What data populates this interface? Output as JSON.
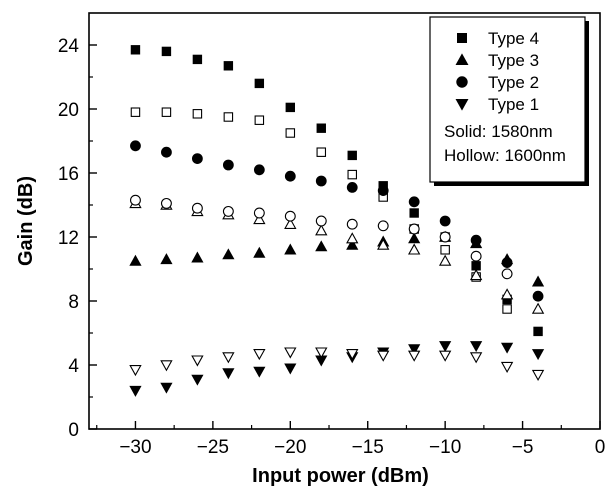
{
  "chart_data": {
    "type": "scatter",
    "title": "",
    "xlabel": "Input power (dBm)",
    "ylabel": "Gain (dB)",
    "xlim": [
      -33,
      0
    ],
    "ylim": [
      0,
      26
    ],
    "xticks": [
      -30,
      -25,
      -20,
      -15,
      -10,
      -5,
      0
    ],
    "xtick_labels": [
      "−30",
      "−25",
      "−20",
      "−15",
      "−10",
      "−5",
      "0"
    ],
    "yticks": [
      0,
      4,
      8,
      12,
      16,
      20,
      24
    ],
    "ytick_labels": [
      "0",
      "4",
      "8",
      "12",
      "16",
      "20",
      "24"
    ],
    "grid": false,
    "legend_position": "top-right",
    "legend_notes": [
      "Solid:  1580nm",
      "Hollow: 1600nm"
    ],
    "x": [
      -30,
      -28,
      -26,
      -24,
      -22,
      -20,
      -18,
      -16,
      -14,
      -12,
      -10,
      -8,
      -6,
      -4
    ],
    "series": [
      {
        "legend": "Type  4",
        "marker": "square",
        "fill": "solid",
        "values": [
          23.7,
          23.6,
          23.1,
          22.7,
          21.6,
          20.1,
          18.8,
          17.1,
          15.2,
          13.5,
          12.0,
          10.2,
          8.1,
          6.1
        ]
      },
      {
        "legend": "Type  4",
        "marker": "square",
        "fill": "hollow",
        "values": [
          19.8,
          19.8,
          19.7,
          19.5,
          19.3,
          18.5,
          17.3,
          15.9,
          14.5,
          12.5,
          11.2,
          9.5,
          7.5,
          null
        ]
      },
      {
        "legend": "Type  3",
        "marker": "triangle-up",
        "fill": "solid",
        "values": [
          10.5,
          10.6,
          10.7,
          10.9,
          11.0,
          11.2,
          11.4,
          11.5,
          11.7,
          11.9,
          12.0,
          11.6,
          10.6,
          9.2
        ]
      },
      {
        "legend": "Type  3",
        "marker": "triangle-up",
        "fill": "hollow",
        "values": [
          14.1,
          14.0,
          13.6,
          13.4,
          13.1,
          12.8,
          12.4,
          11.9,
          11.5,
          11.2,
          10.5,
          9.6,
          8.4,
          7.5
        ]
      },
      {
        "legend": "Type  2",
        "marker": "circle",
        "fill": "solid",
        "values": [
          17.7,
          17.3,
          16.9,
          16.5,
          16.2,
          15.8,
          15.5,
          15.1,
          14.9,
          14.2,
          13.0,
          11.8,
          10.4,
          8.3
        ]
      },
      {
        "legend": "Type  2",
        "marker": "circle",
        "fill": "hollow",
        "values": [
          14.3,
          14.1,
          13.8,
          13.6,
          13.5,
          13.3,
          13.0,
          12.8,
          12.7,
          12.5,
          12.0,
          10.8,
          9.7,
          null
        ]
      },
      {
        "legend": "Type  1",
        "marker": "triangle-down",
        "fill": "solid",
        "values": [
          2.4,
          2.6,
          3.1,
          3.5,
          3.6,
          3.8,
          4.3,
          4.5,
          4.8,
          5.0,
          5.2,
          5.2,
          5.1,
          4.7
        ]
      },
      {
        "legend": "Type  1",
        "marker": "triangle-down",
        "fill": "hollow",
        "values": [
          3.7,
          4.0,
          4.3,
          4.5,
          4.7,
          4.8,
          4.8,
          4.7,
          4.6,
          4.6,
          4.6,
          4.5,
          3.9,
          3.4
        ]
      }
    ]
  }
}
